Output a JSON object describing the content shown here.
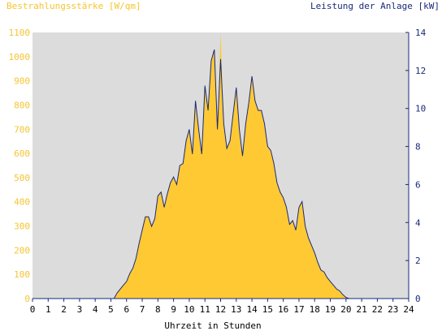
{
  "chart_data": {
    "type": "area",
    "title_left": "Bestrahlungsstärke [W/qm]",
    "title_right": "Leistung der Anlage [kW]",
    "xlabel": "Uhrzeit in Stunden",
    "xlim": [
      0,
      24
    ],
    "x_ticks": [
      0,
      1,
      2,
      3,
      4,
      5,
      6,
      7,
      8,
      9,
      10,
      11,
      12,
      13,
      14,
      15,
      16,
      17,
      18,
      19,
      20,
      21,
      22,
      23,
      24
    ],
    "y_left_lim": [
      0,
      1100
    ],
    "y_left_ticks": [
      0,
      100,
      200,
      300,
      400,
      500,
      600,
      700,
      800,
      900,
      1000,
      1100
    ],
    "y_right_lim": [
      0,
      14
    ],
    "y_right_ticks": [
      0,
      2,
      4,
      6,
      8,
      10,
      12,
      14
    ],
    "grid": false,
    "colors": {
      "irradiance": "#ffc933",
      "power": "#1a2a78",
      "plot_bg": "#dcdcdc",
      "axis": "#1a2a78"
    },
    "series": [
      {
        "name": "Bestrahlungsstärke [W/qm]",
        "axis": "left",
        "style": "filled-area",
        "x": [
          0,
          5.2,
          5.4,
          5.6,
          5.8,
          6.0,
          6.2,
          6.4,
          6.6,
          6.8,
          7.0,
          7.2,
          7.4,
          7.6,
          7.8,
          8.0,
          8.2,
          8.4,
          8.6,
          8.8,
          9.0,
          9.2,
          9.4,
          9.6,
          9.8,
          10.0,
          10.2,
          10.4,
          10.6,
          10.8,
          11.0,
          11.2,
          11.4,
          11.6,
          11.8,
          12.0,
          12.2,
          12.4,
          12.6,
          12.8,
          13.0,
          13.2,
          13.4,
          13.6,
          13.8,
          14.0,
          14.2,
          14.4,
          14.6,
          14.8,
          15.0,
          15.2,
          15.4,
          15.6,
          15.8,
          16.0,
          16.2,
          16.4,
          16.6,
          16.8,
          17.0,
          17.2,
          17.4,
          17.6,
          17.8,
          18.0,
          18.2,
          18.4,
          18.6,
          18.8,
          19.0,
          19.2,
          19.4,
          19.6,
          19.8,
          20.0,
          20.2,
          24
        ],
        "values": [
          0,
          0,
          20,
          40,
          60,
          70,
          100,
          120,
          160,
          230,
          290,
          340,
          340,
          300,
          330,
          420,
          440,
          380,
          430,
          480,
          500,
          470,
          550,
          560,
          650,
          700,
          600,
          820,
          700,
          600,
          880,
          780,
          980,
          1030,
          700,
          1100,
          720,
          620,
          650,
          760,
          870,
          700,
          590,
          720,
          810,
          920,
          820,
          780,
          780,
          720,
          630,
          610,
          560,
          480,
          440,
          420,
          380,
          310,
          320,
          280,
          380,
          400,
          300,
          250,
          220,
          190,
          150,
          120,
          110,
          90,
          70,
          55,
          40,
          30,
          15,
          5,
          0,
          0
        ]
      },
      {
        "name": "Leistung der Anlage [kW]",
        "axis": "right",
        "style": "line",
        "x": [
          0,
          5.2,
          5.4,
          5.6,
          5.8,
          6.0,
          6.2,
          6.4,
          6.6,
          6.8,
          7.0,
          7.2,
          7.4,
          7.6,
          7.8,
          8.0,
          8.2,
          8.4,
          8.6,
          8.8,
          9.0,
          9.2,
          9.4,
          9.6,
          9.8,
          10.0,
          10.2,
          10.4,
          10.6,
          10.8,
          11.0,
          11.2,
          11.4,
          11.6,
          11.8,
          12.0,
          12.2,
          12.4,
          12.6,
          12.8,
          13.0,
          13.2,
          13.4,
          13.6,
          13.8,
          14.0,
          14.2,
          14.4,
          14.6,
          14.8,
          15.0,
          15.2,
          15.4,
          15.6,
          15.8,
          16.0,
          16.2,
          16.4,
          16.6,
          16.8,
          17.0,
          17.2,
          17.4,
          17.6,
          17.8,
          18.0,
          18.2,
          18.4,
          18.6,
          18.8,
          19.0,
          19.2,
          19.4,
          19.6,
          19.8,
          20.0,
          20.2,
          24
        ],
        "values": [
          0,
          0,
          0.3,
          0.5,
          0.7,
          0.9,
          1.3,
          1.6,
          2.1,
          2.9,
          3.6,
          4.3,
          4.3,
          3.8,
          4.2,
          5.4,
          5.6,
          4.8,
          5.5,
          6.1,
          6.4,
          6.0,
          7.0,
          7.1,
          8.3,
          8.9,
          7.6,
          10.4,
          8.9,
          7.6,
          11.2,
          9.9,
          12.5,
          13.1,
          8.9,
          12.6,
          9.2,
          7.9,
          8.3,
          9.7,
          11.1,
          8.9,
          7.5,
          9.2,
          10.3,
          11.7,
          10.4,
          9.9,
          9.9,
          9.2,
          8.0,
          7.8,
          7.1,
          6.1,
          5.6,
          5.3,
          4.8,
          3.9,
          4.1,
          3.6,
          4.8,
          5.1,
          3.8,
          3.2,
          2.8,
          2.4,
          1.9,
          1.5,
          1.4,
          1.1,
          0.9,
          0.7,
          0.5,
          0.4,
          0.2,
          0.06,
          0,
          0
        ]
      }
    ]
  }
}
